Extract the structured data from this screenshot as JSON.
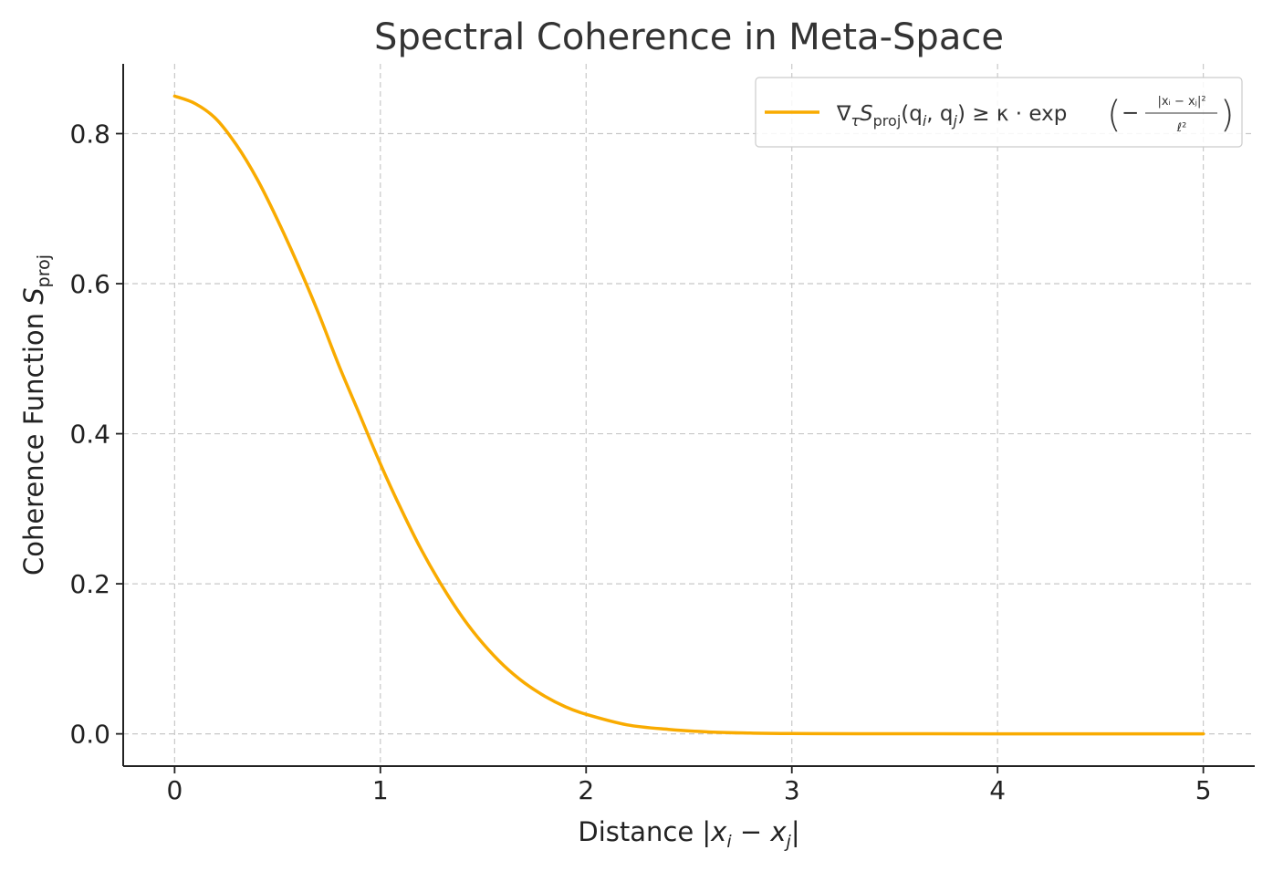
{
  "chart_data": {
    "type": "line",
    "title": "Spectral Coherence in Meta-Space",
    "xlabel": {
      "prefix": "Distance |",
      "x1": "x",
      "sub1": "i",
      "minus": " − ",
      "x2": "x",
      "sub2": "j",
      "suffix": "|"
    },
    "ylabel": {
      "text": "Coherence Function ",
      "symbol": "S",
      "sub": "proj"
    },
    "xlim": [
      -0.25,
      5.25
    ],
    "ylim": [
      -0.043,
      0.893
    ],
    "xticks": [
      0,
      1,
      2,
      3,
      4,
      5
    ],
    "xtick_labels": [
      "0",
      "1",
      "2",
      "3",
      "4",
      "5"
    ],
    "yticks": [
      0.0,
      0.2,
      0.4,
      0.6,
      0.8
    ],
    "ytick_labels": [
      "0.0",
      "0.2",
      "0.4",
      "0.6",
      "0.8"
    ],
    "grid": true,
    "legend_placement": "top-right",
    "series": [
      {
        "name": {
          "nabla": "∇",
          "tau": "τ",
          "s": "S",
          "proj": "proj",
          "args": "(q",
          "i": "i",
          "comma": ", q",
          "j": "j",
          "close": ") ≥ κ · exp",
          "lparen": "(",
          "minus": "−",
          "numerator": "|xᵢ − xⱼ|²",
          "denominator": "ℓ²",
          "rparen": ")"
        },
        "color": "#f9ab00",
        "x": [
          0,
          0.1,
          0.2,
          0.3,
          0.4,
          0.5,
          0.6,
          0.7,
          0.8,
          0.9,
          1.0,
          1.1,
          1.2,
          1.3,
          1.4,
          1.5,
          1.6,
          1.7,
          1.8,
          1.9,
          2.0,
          2.2,
          2.4,
          2.6,
          2.8,
          3.0,
          3.5,
          4.0,
          4.5,
          5.0
        ],
        "y": [
          0.85,
          0.84,
          0.82,
          0.785,
          0.74,
          0.685,
          0.625,
          0.56,
          0.49,
          0.425,
          0.36,
          0.3,
          0.245,
          0.197,
          0.155,
          0.12,
          0.091,
          0.068,
          0.05,
          0.036,
          0.026,
          0.012,
          0.006,
          0.0025,
          0.001,
          0.0004,
          0.0001,
          0.0,
          0.0,
          0.0
        ]
      }
    ]
  }
}
